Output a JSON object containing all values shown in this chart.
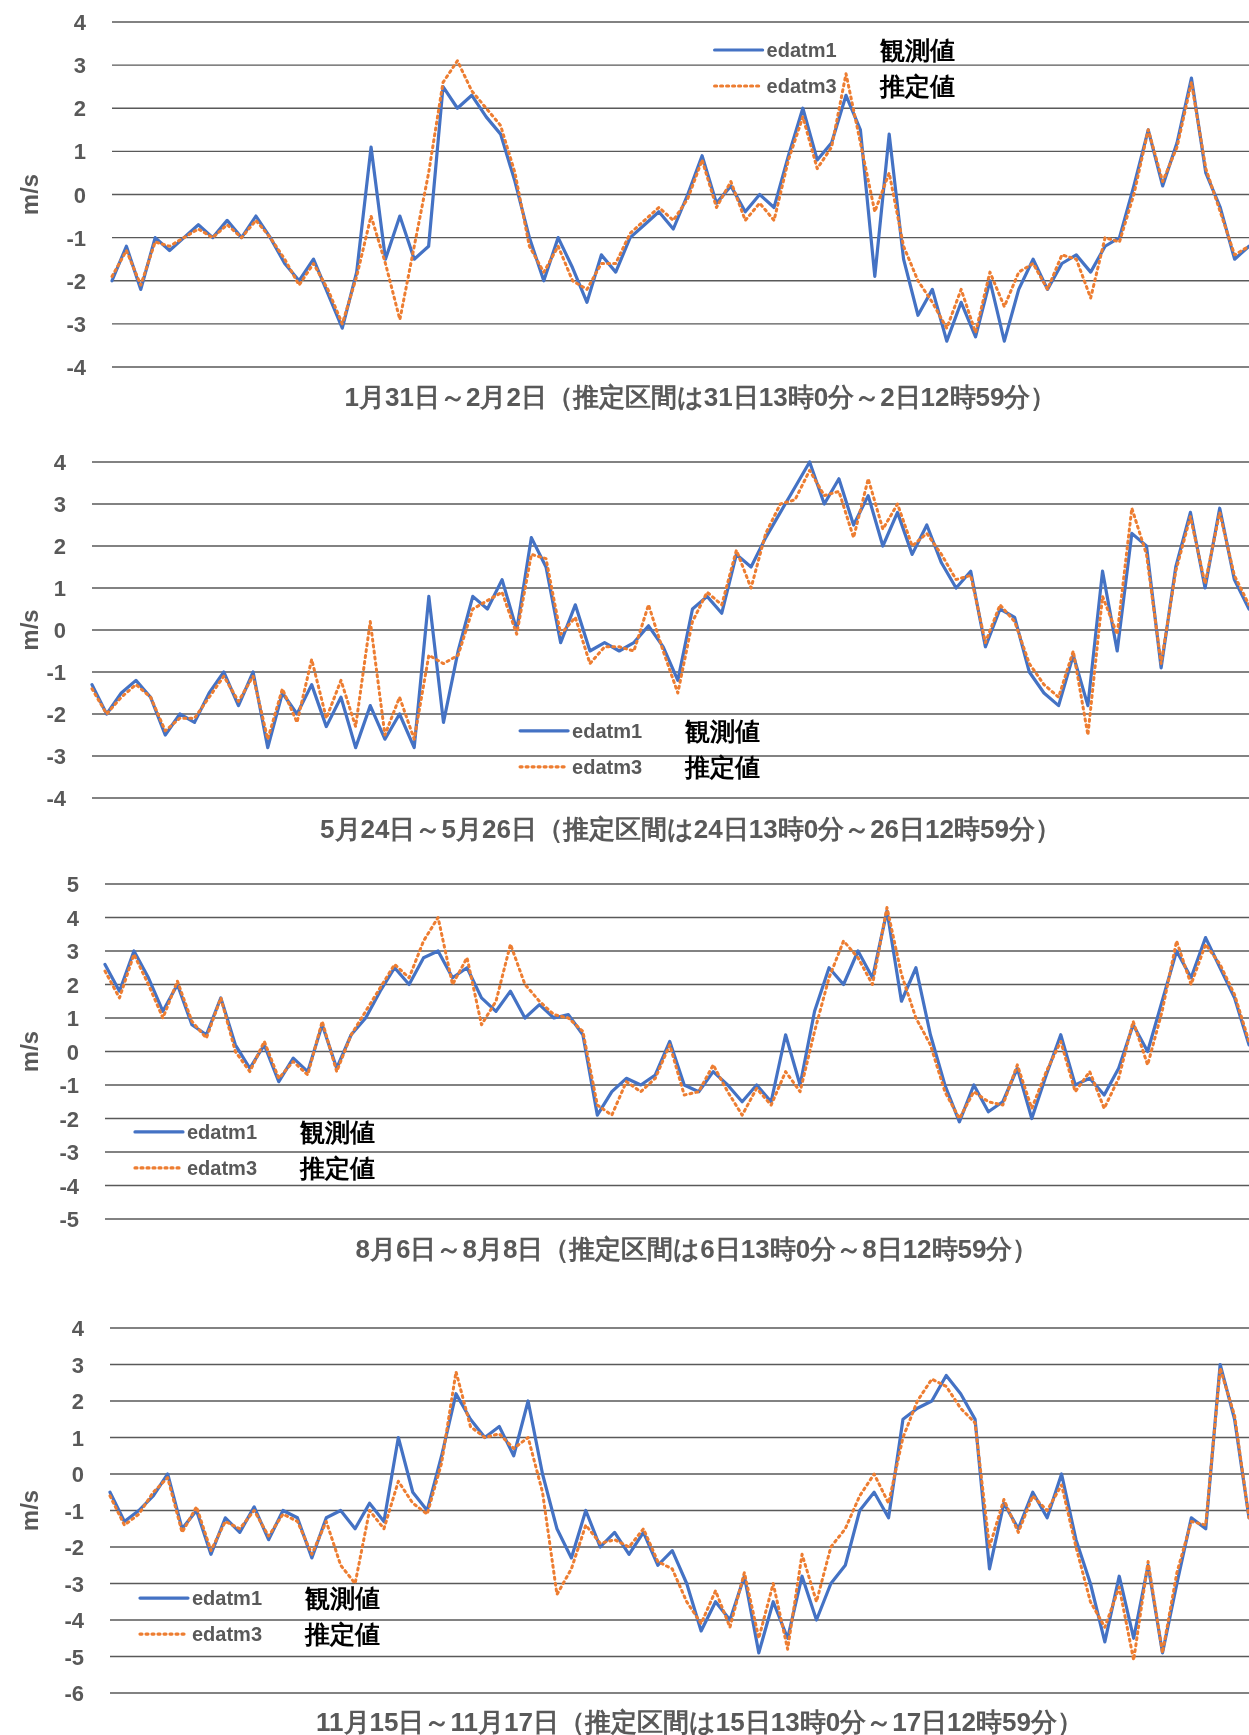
{
  "chart_data": [
    {
      "type": "line",
      "xlabel": "1月31日～2月2日（推定区間は31日13時0分～2日12時59分）",
      "ylabel": "m/s",
      "ylim": [
        -4,
        4
      ],
      "yticks": [
        -4,
        -3,
        -2,
        -1,
        0,
        1,
        2,
        3,
        4
      ],
      "grid": "y",
      "tick_labels": "y",
      "legend": "top right",
      "annotations": [
        "観測値",
        "推定値"
      ],
      "categories": [
        null,
        null,
        null,
        null,
        null,
        null,
        null,
        null,
        null,
        null,
        null,
        null,
        null,
        null,
        null,
        null,
        null,
        null,
        null,
        null,
        null,
        null,
        null,
        null,
        null,
        null,
        null,
        null,
        null,
        null,
        null,
        null,
        null,
        null,
        null,
        null,
        null,
        null,
        null,
        null,
        null,
        null,
        null,
        null,
        null,
        null,
        null,
        null,
        null,
        null,
        null,
        null,
        null,
        null,
        null,
        null,
        null,
        null,
        null,
        null,
        null,
        null,
        null,
        null,
        null,
        null,
        null,
        null,
        null,
        null,
        null,
        null,
        null,
        null,
        null,
        null,
        null,
        null,
        null,
        null
      ],
      "series": [
        {
          "name": "edatm1",
          "color": "#4472c4",
          "line_style": "solid",
          "values": [
            -2.0,
            -1.2,
            -2.2,
            -1.0,
            -1.3,
            -1.0,
            -0.7,
            -1.0,
            -0.6,
            -1.0,
            -0.5,
            -1.0,
            -1.6,
            -2.0,
            -1.5,
            -2.3,
            -3.1,
            -1.8,
            1.1,
            -1.5,
            -0.5,
            -1.5,
            -1.2,
            2.5,
            2.0,
            2.3,
            1.8,
            1.4,
            0.3,
            -1.0,
            -2.0,
            -1.0,
            -1.7,
            -2.5,
            -1.4,
            -1.8,
            -1.0,
            -0.7,
            -0.4,
            -0.8,
            0.0,
            0.9,
            -0.2,
            0.2,
            -0.4,
            0.0,
            -0.3,
            0.9,
            2.0,
            0.8,
            1.2,
            2.3,
            1.5,
            -1.9,
            1.4,
            -1.5,
            -2.8,
            -2.2,
            -3.4,
            -2.5,
            -3.3,
            -2.0,
            -3.4,
            -2.2,
            -1.5,
            -2.2,
            -1.6,
            -1.4,
            -1.8,
            -1.2,
            -1.0,
            0.2,
            1.5,
            0.2,
            1.2,
            2.7,
            0.5,
            -0.3,
            -1.5,
            -1.2
          ]
        },
        {
          "name": "edatm3",
          "color": "#ed7d31",
          "line_style": "dotted",
          "values": [
            -1.9,
            -1.3,
            -2.1,
            -1.1,
            -1.2,
            -1.0,
            -0.8,
            -1.0,
            -0.7,
            -1.0,
            -0.6,
            -1.0,
            -1.5,
            -2.1,
            -1.6,
            -2.2,
            -3.0,
            -1.9,
            -0.5,
            -1.6,
            -2.9,
            -1.2,
            0.5,
            2.6,
            3.1,
            2.4,
            2.0,
            1.6,
            0.5,
            -1.2,
            -1.8,
            -1.2,
            -2.0,
            -2.2,
            -1.6,
            -1.6,
            -0.9,
            -0.6,
            -0.3,
            -0.6,
            -0.1,
            0.8,
            -0.3,
            0.3,
            -0.6,
            -0.2,
            -0.6,
            0.8,
            1.8,
            0.6,
            1.1,
            2.8,
            1.2,
            -0.4,
            0.5,
            -1.2,
            -2.0,
            -2.5,
            -3.1,
            -2.2,
            -3.2,
            -1.8,
            -2.6,
            -1.8,
            -1.6,
            -2.2,
            -1.4,
            -1.5,
            -2.4,
            -1.0,
            -1.1,
            0.0,
            1.5,
            0.3,
            1.1,
            2.6,
            0.6,
            -0.4,
            -1.4,
            -1.2
          ]
        }
      ]
    },
    {
      "type": "line",
      "xlabel": "5月24日～5月26日（推定区間は24日13時0分～26日12時59分）",
      "ylabel": "m/s",
      "ylim": [
        -4,
        4
      ],
      "yticks": [
        -4,
        -3,
        -2,
        -1,
        0,
        1,
        2,
        3,
        4
      ],
      "grid": "y",
      "tick_labels": "y",
      "legend": "bottom",
      "annotations": [
        "観測値",
        "推定値"
      ],
      "categories": [
        null,
        null,
        null,
        null,
        null,
        null,
        null,
        null,
        null,
        null,
        null,
        null,
        null,
        null,
        null,
        null,
        null,
        null,
        null,
        null,
        null,
        null,
        null,
        null,
        null,
        null,
        null,
        null,
        null,
        null,
        null,
        null,
        null,
        null,
        null,
        null,
        null,
        null,
        null,
        null,
        null,
        null,
        null,
        null,
        null,
        null,
        null,
        null,
        null,
        null,
        null,
        null,
        null,
        null,
        null,
        null,
        null,
        null,
        null,
        null,
        null,
        null,
        null,
        null,
        null,
        null,
        null,
        null,
        null,
        null,
        null,
        null,
        null,
        null,
        null,
        null,
        null,
        null,
        null,
        null
      ],
      "series": [
        {
          "name": "edatm1",
          "color": "#4472c4",
          "line_style": "solid",
          "values": [
            -1.3,
            -2.0,
            -1.5,
            -1.2,
            -1.6,
            -2.5,
            -2.0,
            -2.2,
            -1.5,
            -1.0,
            -1.8,
            -1.0,
            -2.8,
            -1.5,
            -2.0,
            -1.3,
            -2.3,
            -1.6,
            -2.8,
            -1.8,
            -2.6,
            -2.0,
            -2.8,
            0.8,
            -2.2,
            -0.5,
            0.8,
            0.5,
            1.2,
            0.0,
            2.2,
            1.5,
            -0.3,
            0.6,
            -0.5,
            -0.3,
            -0.5,
            -0.3,
            0.1,
            -0.4,
            -1.2,
            0.5,
            0.8,
            0.4,
            1.8,
            1.5,
            2.2,
            2.8,
            3.4,
            4.0,
            3.0,
            3.6,
            2.5,
            3.2,
            2.0,
            2.8,
            1.8,
            2.5,
            1.6,
            1.0,
            1.4,
            -0.4,
            0.5,
            0.3,
            -1.0,
            -1.5,
            -1.8,
            -0.6,
            -1.8,
            1.4,
            -0.5,
            2.3,
            2.0,
            -0.9,
            1.5,
            2.8,
            1.0,
            2.9,
            1.2,
            0.5
          ]
        },
        {
          "name": "edatm3",
          "color": "#ed7d31",
          "line_style": "dotted",
          "values": [
            -1.4,
            -2.0,
            -1.6,
            -1.3,
            -1.6,
            -2.4,
            -2.1,
            -2.1,
            -1.6,
            -1.1,
            -1.7,
            -1.1,
            -2.6,
            -1.4,
            -2.2,
            -0.7,
            -2.1,
            -1.2,
            -2.3,
            0.2,
            -2.5,
            -1.6,
            -2.6,
            -0.6,
            -0.8,
            -0.6,
            0.5,
            0.7,
            0.9,
            -0.1,
            1.8,
            1.7,
            -0.1,
            0.3,
            -0.8,
            -0.4,
            -0.4,
            -0.5,
            0.6,
            -0.5,
            -1.5,
            0.2,
            0.9,
            0.6,
            1.9,
            1.0,
            2.3,
            3.0,
            3.1,
            3.8,
            3.2,
            3.3,
            2.2,
            3.6,
            2.4,
            3.0,
            2.0,
            2.3,
            1.8,
            1.2,
            1.3,
            -0.3,
            0.6,
            0.2,
            -0.8,
            -1.3,
            -1.6,
            -0.5,
            -2.5,
            0.8,
            -0.1,
            2.9,
            1.8,
            -0.8,
            1.4,
            2.7,
            1.1,
            2.8,
            1.3,
            0.6
          ]
        }
      ]
    },
    {
      "type": "line",
      "xlabel": "8月6日～8月8日（推定区間は6日13時0分～8日12時59分）",
      "ylabel": "m/s",
      "ylim": [
        -5,
        5
      ],
      "yticks": [
        -5,
        -4,
        -3,
        -2,
        -1,
        0,
        1,
        2,
        3,
        4,
        5
      ],
      "grid": "y",
      "tick_labels": "y",
      "legend": "bottom left",
      "annotations": [
        "観測値",
        "推定値"
      ],
      "categories": [
        null,
        null,
        null,
        null,
        null,
        null,
        null,
        null,
        null,
        null,
        null,
        null,
        null,
        null,
        null,
        null,
        null,
        null,
        null,
        null,
        null,
        null,
        null,
        null,
        null,
        null,
        null,
        null,
        null,
        null,
        null,
        null,
        null,
        null,
        null,
        null,
        null,
        null,
        null,
        null,
        null,
        null,
        null,
        null,
        null,
        null,
        null,
        null,
        null,
        null,
        null,
        null,
        null,
        null,
        null,
        null,
        null,
        null,
        null,
        null,
        null,
        null,
        null,
        null,
        null,
        null,
        null,
        null,
        null,
        null,
        null,
        null,
        null,
        null,
        null,
        null,
        null,
        null,
        null,
        null
      ],
      "series": [
        {
          "name": "edatm1",
          "color": "#4472c4",
          "line_style": "solid",
          "values": [
            2.6,
            1.8,
            3.0,
            2.2,
            1.2,
            2.0,
            0.8,
            0.5,
            1.6,
            0.2,
            -0.5,
            0.2,
            -0.9,
            -0.2,
            -0.6,
            0.8,
            -0.5,
            0.5,
            1.0,
            1.8,
            2.5,
            2.0,
            2.8,
            3.0,
            2.2,
            2.5,
            1.6,
            1.2,
            1.8,
            1.0,
            1.4,
            1.0,
            1.1,
            0.5,
            -1.9,
            -1.2,
            -0.8,
            -1.0,
            -0.7,
            0.3,
            -1.0,
            -1.2,
            -0.6,
            -1.0,
            -1.5,
            -1.0,
            -1.5,
            0.5,
            -1.0,
            1.2,
            2.5,
            2.0,
            3.0,
            2.2,
            4.2,
            1.5,
            2.5,
            0.5,
            -1.0,
            -2.1,
            -1.0,
            -1.8,
            -1.5,
            -0.5,
            -2.0,
            -0.7,
            0.5,
            -1.0,
            -0.8,
            -1.3,
            -0.5,
            0.8,
            0.0,
            1.5,
            3.0,
            2.2,
            3.4,
            2.5,
            1.6,
            0.2
          ]
        },
        {
          "name": "edatm3",
          "color": "#ed7d31",
          "line_style": "dotted",
          "values": [
            2.4,
            1.6,
            2.9,
            2.0,
            1.0,
            2.1,
            0.9,
            0.4,
            1.6,
            0.0,
            -0.6,
            0.3,
            -0.8,
            -0.3,
            -0.7,
            0.9,
            -0.6,
            0.5,
            1.2,
            1.9,
            2.6,
            2.2,
            3.3,
            4.0,
            2.0,
            2.8,
            0.8,
            1.5,
            3.2,
            2.0,
            1.5,
            1.1,
            1.0,
            0.6,
            -1.6,
            -1.9,
            -0.9,
            -1.2,
            -0.8,
            0.2,
            -1.3,
            -1.2,
            -0.4,
            -1.2,
            -1.9,
            -1.1,
            -1.6,
            -0.6,
            -1.2,
            0.6,
            2.2,
            3.3,
            2.8,
            2.0,
            4.3,
            2.3,
            1.0,
            0.2,
            -1.2,
            -2.0,
            -1.2,
            -1.5,
            -1.6,
            -0.4,
            -1.7,
            -0.6,
            0.3,
            -1.2,
            -0.6,
            -1.7,
            -0.8,
            0.9,
            -0.4,
            1.2,
            3.3,
            2.0,
            3.2,
            2.6,
            1.7,
            0.3
          ]
        }
      ]
    },
    {
      "type": "line",
      "xlabel": "11月15日～11月17日（推定区間は15日13時0分～17日12時59分）",
      "ylabel": "m/s",
      "ylim": [
        -6,
        4
      ],
      "yticks": [
        -6,
        -5,
        -4,
        -3,
        -2,
        -1,
        0,
        1,
        2,
        3,
        4
      ],
      "grid": "y",
      "tick_labels": "y",
      "legend": "bottom left",
      "annotations": [
        "観測値",
        "推定値"
      ],
      "categories": [
        null,
        null,
        null,
        null,
        null,
        null,
        null,
        null,
        null,
        null,
        null,
        null,
        null,
        null,
        null,
        null,
        null,
        null,
        null,
        null,
        null,
        null,
        null,
        null,
        null,
        null,
        null,
        null,
        null,
        null,
        null,
        null,
        null,
        null,
        null,
        null,
        null,
        null,
        null,
        null,
        null,
        null,
        null,
        null,
        null,
        null,
        null,
        null,
        null,
        null,
        null,
        null,
        null,
        null,
        null,
        null,
        null,
        null,
        null,
        null,
        null,
        null,
        null,
        null,
        null,
        null,
        null,
        null,
        null,
        null,
        null,
        null,
        null,
        null,
        null,
        null,
        null,
        null,
        null,
        null
      ],
      "series": [
        {
          "name": "edatm1",
          "color": "#4472c4",
          "line_style": "solid",
          "values": [
            -0.5,
            -1.3,
            -1.0,
            -0.6,
            0.0,
            -1.5,
            -1.0,
            -2.2,
            -1.2,
            -1.6,
            -0.9,
            -1.8,
            -1.0,
            -1.2,
            -2.3,
            -1.2,
            -1.0,
            -1.5,
            -0.8,
            -1.3,
            1.0,
            -0.5,
            -1.0,
            0.5,
            2.2,
            1.5,
            1.0,
            1.3,
            0.5,
            2.0,
            0.0,
            -1.5,
            -2.3,
            -1.0,
            -2.0,
            -1.6,
            -2.2,
            -1.6,
            -2.5,
            -2.1,
            -3.0,
            -4.3,
            -3.5,
            -4.0,
            -2.8,
            -4.9,
            -3.5,
            -4.5,
            -2.8,
            -4.0,
            -3.0,
            -2.5,
            -1.0,
            -0.5,
            -1.2,
            1.5,
            1.8,
            2.0,
            2.7,
            2.2,
            1.5,
            -2.6,
            -0.8,
            -1.5,
            -0.5,
            -1.2,
            0.0,
            -1.8,
            -3.0,
            -4.6,
            -2.8,
            -4.5,
            -2.5,
            -4.9,
            -3.0,
            -1.2,
            -1.5,
            3.0,
            1.5,
            -1.2
          ]
        },
        {
          "name": "edatm3",
          "color": "#ed7d31",
          "line_style": "dotted",
          "values": [
            -0.6,
            -1.4,
            -1.1,
            -0.5,
            -0.1,
            -1.6,
            -0.9,
            -2.1,
            -1.3,
            -1.5,
            -1.0,
            -1.7,
            -1.1,
            -1.3,
            -2.2,
            -1.3,
            -2.5,
            -3.0,
            -1.0,
            -1.5,
            -0.2,
            -0.8,
            -1.1,
            0.3,
            2.8,
            1.3,
            1.0,
            1.1,
            0.7,
            1.0,
            -0.5,
            -3.3,
            -2.6,
            -1.4,
            -1.9,
            -1.8,
            -2.0,
            -1.5,
            -2.4,
            -2.6,
            -3.5,
            -4.1,
            -3.2,
            -4.2,
            -2.7,
            -4.5,
            -3.0,
            -4.8,
            -2.2,
            -3.5,
            -2.0,
            -1.5,
            -0.6,
            0.0,
            -0.8,
            1.0,
            2.0,
            2.6,
            2.4,
            1.8,
            1.4,
            -2.0,
            -0.7,
            -1.6,
            -0.6,
            -1.0,
            -0.3,
            -2.0,
            -3.5,
            -4.2,
            -3.1,
            -5.1,
            -2.4,
            -4.9,
            -2.7,
            -1.3,
            -1.4,
            2.9,
            1.6,
            -1.2
          ]
        }
      ]
    }
  ]
}
